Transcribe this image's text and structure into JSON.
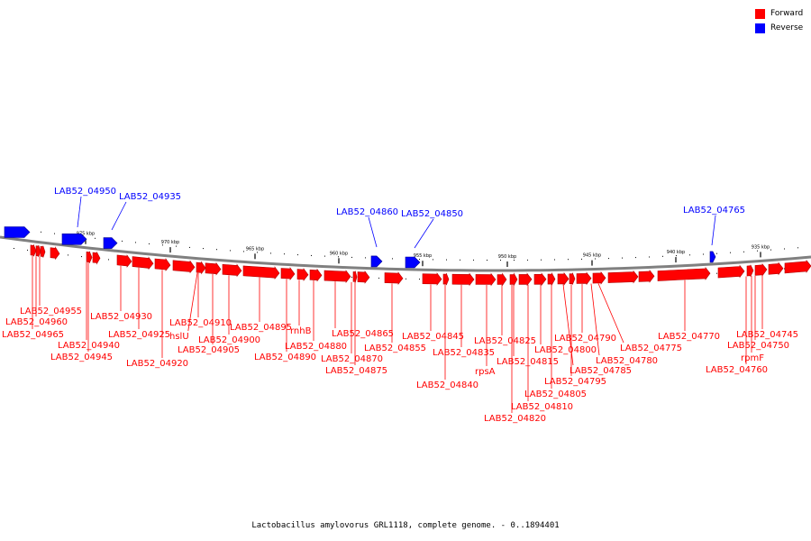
{
  "legend": [
    {
      "label": "Forward",
      "color": "#ff0000"
    },
    {
      "label": "Reverse",
      "color": "#0000ff"
    }
  ],
  "caption": "Lactobacillus amylovorus GRL1118, complete genome. - 0..1894401",
  "scale_labels": [
    "975 kbp",
    "970 kbp",
    "965 kbp",
    "960 kbp",
    "955 kbp",
    "950 kbp",
    "945 kbp",
    "940 kbp",
    "935 kbp"
  ],
  "reverse_labels": [
    "LAB52_04950",
    "LAB52_04935",
    "LAB52_04860",
    "LAB52_04850",
    "LAB52_04765"
  ],
  "forward_labels": [
    "LAB52_04955",
    "LAB52_04960",
    "LAB52_04965",
    "LAB52_04940",
    "LAB52_04945",
    "LAB52_04930",
    "LAB52_04925",
    "LAB52_04920",
    "LAB52_04910",
    "hslU",
    "LAB52_04900",
    "LAB52_04905",
    "LAB52_04895",
    "rnhB",
    "LAB52_04890",
    "LAB52_04880",
    "LAB52_04870",
    "LAB52_04875",
    "LAB52_04865",
    "LAB52_04855",
    "LAB52_04845",
    "LAB52_04835",
    "LAB52_04840",
    "rpsA",
    "LAB52_04825",
    "LAB52_04815",
    "LAB52_04805",
    "LAB52_04810",
    "LAB52_04820",
    "LAB52_04800",
    "LAB52_04790",
    "LAB52_04795",
    "LAB52_04785",
    "LAB52_04780",
    "LAB52_04775",
    "LAB52_04770",
    "LAB52_04745",
    "LAB52_04750",
    "rpmF",
    "LAB52_04760"
  ],
  "colors": {
    "forward": "#ff0000",
    "reverse": "#0000ff",
    "axis": "#808080"
  }
}
